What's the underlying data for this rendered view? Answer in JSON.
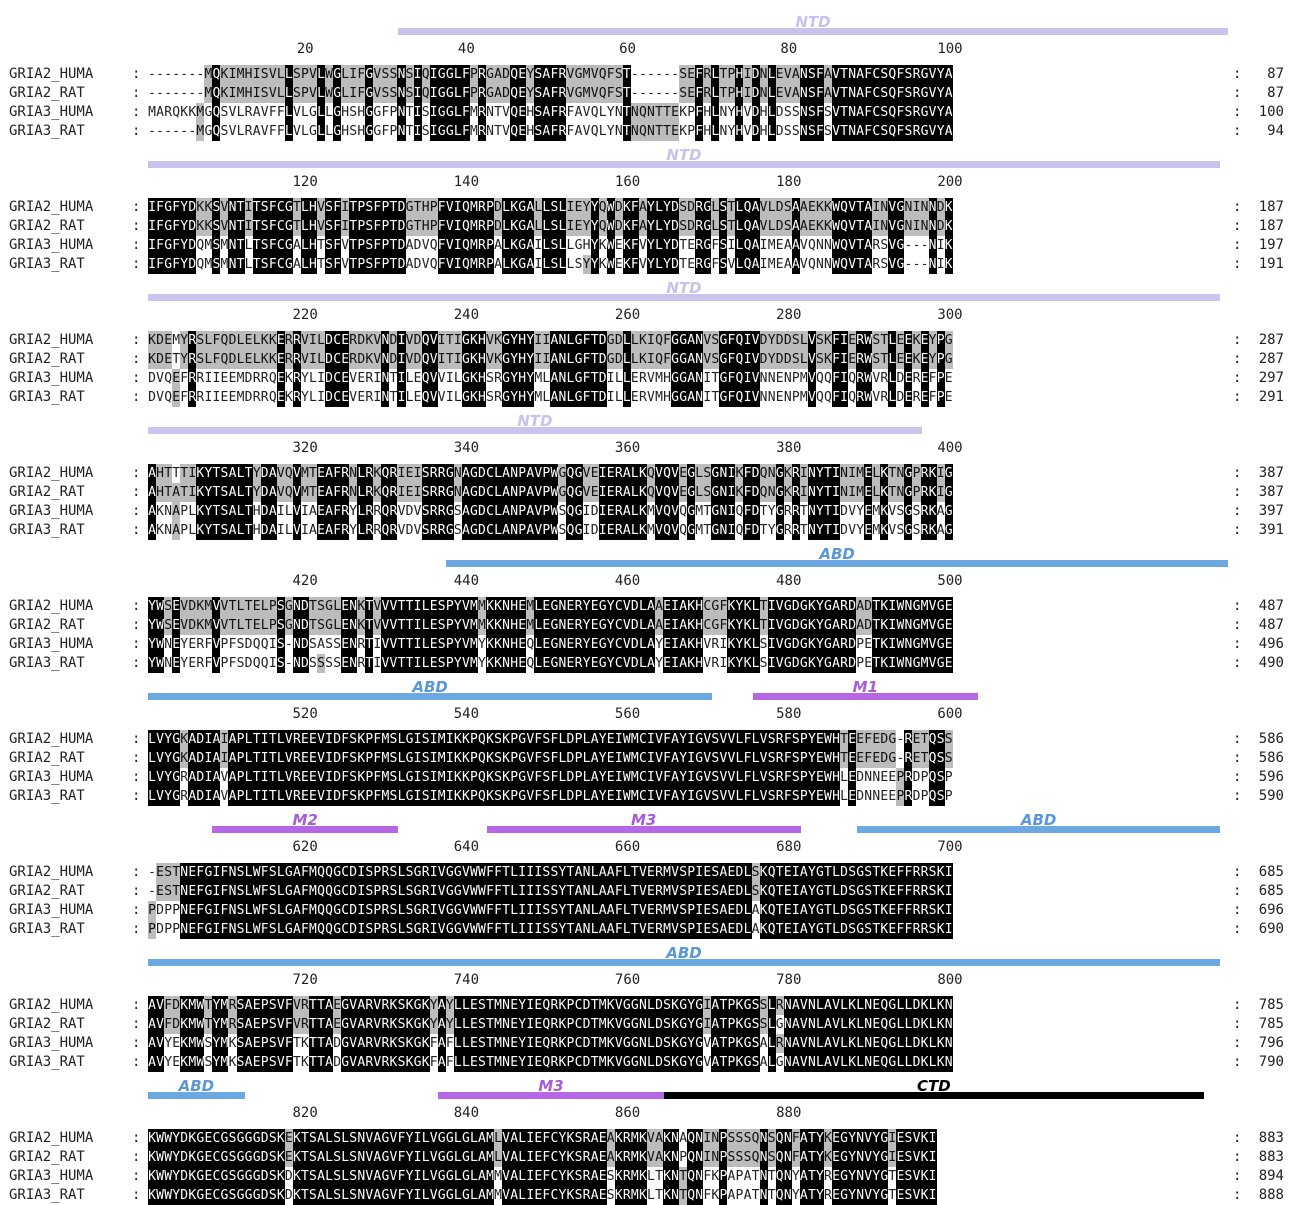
{
  "colors": {
    "NTD": "#c9c4ee",
    "ABD": "#6ca8e2",
    "M1": "#b567e6",
    "M2": "#b567e6",
    "M3": "#b567e6",
    "CTD": "#000000",
    "ntd_label": "#c7c3ec",
    "abd_label": "#5a97d8",
    "m_label": "#a85cd8",
    "ctd_label": "#000000",
    "identical_bg": "#000000",
    "similar_bg": "#bcbcbc"
  },
  "sequences": [
    "GRIA2_HUMA",
    "GRIA2_RAT",
    "GRIA3_HUMA",
    "GRIA3_RAT"
  ],
  "blocks": [
    {
      "ticks": [
        "20",
        "40",
        "60",
        "80",
        "100"
      ],
      "domains": [
        {
          "label": "NTD",
          "color_key": "NTD",
          "start_col": 31,
          "end_col": 133
        }
      ],
      "rows": [
        {
          "name": "GRIA2_HUMA",
          "seq": "-------MQKIMHISVLLSPVLWGLIFGVSSNSIQIGGLFPRGADQEYSAFRVGMVQFST------SEFRLTPHIDNLEVANSFAVTNAFCSQFSRGVYA",
          "end": "87"
        },
        {
          "name": "GRIA2_RAT",
          "seq": "-------MQKIMHISVLLSPVLWGLIFGVSSNSIQIGGLFPRGADQEYSAFRVGMVQFST------SEFRLTPHIDNLEVANSFAVTNAFCSQFSRGVYA",
          "end": "87"
        },
        {
          "name": "GRIA3_HUMA",
          "seq": "MARQKKMGQSVLRAVFFLVLGLLGHSHGGFPNTISIGGLFMRNTVQEHSAFRFAVQLYNTNQNTTEKPFHLNYHVDHLDSSNSFSVTNAFCSQFSRGVYA",
          "end": "100"
        },
        {
          "name": "GRIA3_RAT",
          "seq": "------MGQSVLRAVFFLVLGLLGHSHGGFPNTISIGGLFMRNTVQEHSAFRFAVQLYNTNQNTTEKPFHLNYHVDHLDSSNSFSVTNAFCSQFSRGVYA",
          "end": "94"
        }
      ]
    },
    {
      "ticks": [
        "120",
        "140",
        "160",
        "180",
        "200"
      ],
      "domains": [
        {
          "label": "NTD",
          "color_key": "NTD",
          "start_col": 0,
          "end_col": 132
        }
      ],
      "rows": [
        {
          "name": "GRIA2_HUMA",
          "seq": "IFGFYDKKSVNTITSFCGTLHVSFITPSFPTDGTHPFVIQMRPDLKGALLSLIEYYQWDKFAYLYDSDRGLSTLQAVLDSAAEKKWQVTAINVGNINNDK",
          "end": "187"
        },
        {
          "name": "GRIA2_RAT",
          "seq": "IFGFYDKKSVNTITSFCGTLHVSFITPSFPTDGTHPFVIQMRPDLKGALLSLIEYYQWDKFAYLYDSDRGLSTLQAVLDSAAEKKWQVTAINVGNINNDK",
          "end": "187"
        },
        {
          "name": "GRIA3_HUMA",
          "seq": "IFGFYDQMSMNTLTSFCGALHTSFVTPSFPTDADVQFVIQMRPALKGAILSLLGHYKWEKFVYLYDTERGFSILQAIMEAAVQNNWQVTARSVG---NIK",
          "end": "197"
        },
        {
          "name": "GRIA3_RAT",
          "seq": "IFGFYDQMSMNTLTSFCGALHTSFVTPSFPTDADVQFVIQMRPALKGAILSLLSYYKWEKFVYLYDTERGFSVLQAIMEAAVQNNWQVTARSVG---NIK",
          "end": "191"
        }
      ]
    },
    {
      "ticks": [
        "220",
        "240",
        "260",
        "280",
        "300"
      ],
      "domains": [
        {
          "label": "NTD",
          "color_key": "NTD",
          "start_col": 0,
          "end_col": 132
        }
      ],
      "rows": [
        {
          "name": "GRIA2_HUMA",
          "seq": "KDEMYRSLFQDLELKKERRVILDCERDKVNDIVDQVITIGKHVKGYHYIIANLGFTDGDLLKIQFGGANVSGFQIVDYDDSLVSKFIERWSTLEEKEYPG",
          "end": "287"
        },
        {
          "name": "GRIA2_RAT",
          "seq": "KDETYRSLFQDLELKKERRVILDCERDKVNDIVDQVITIGKHVKGYHYIIANLGFTDGDLLKIQFGGANVSGFQIVDYDDSLVSKFIERWSTLEEKEYPG",
          "end": "287"
        },
        {
          "name": "GRIA3_HUMA",
          "seq": "DVQEFRRIIEEMDRRQEKRYLIDCEVERINTILEQVVILGKHSRGYHYMLANLGFTDILLERVMHGGANITGFQIVNNENPMVQQFIQRWVRLDEREFPE",
          "end": "297"
        },
        {
          "name": "GRIA3_RAT",
          "seq": "DVQEFRRIIEEMDRRQEKRYLIDCEVERINTILEQVVILGKHSRGYHYMLANLGFTDILLERVMHGGANITGFQIVNNENPMVQQFIQRWVRLDEREFPE",
          "end": "291"
        }
      ]
    },
    {
      "ticks": [
        "320",
        "340",
        "360",
        "380",
        "400"
      ],
      "domains": [
        {
          "label": "NTD",
          "color_key": "NTD",
          "start_col": 0,
          "end_col": 95
        }
      ],
      "rows": [
        {
          "name": "GRIA2_HUMA",
          "seq": "AHTTTIKYTSALTYDAVQVMTEAFRNLRKQRIEISRRGNAGDCLANPAVPWGQGVEIERALKQVQVEGLSGNIKFDQNGKRINYTINIMELKTNGPRKIG",
          "end": "387"
        },
        {
          "name": "GRIA2_RAT",
          "seq": "AHTATIKYTSALTYDAVQVMTEAFRNLRKQRIEISRRGNAGDCLANPAVPWGQGVEIERALKQVQVEGLSGNIKFDQNGKRINYTINIMELKTNGPRKIG",
          "end": "387"
        },
        {
          "name": "GRIA3_HUMA",
          "seq": "AKNAPLKYTSALTHDAILVIAEAFRYLRRQRVDVSRRGSAGDCLANPAVPWSQGIDIERALKMVQVQGMTGNIQFDTYGRRTNYTIDVYEMKVSGSRKAG",
          "end": "397"
        },
        {
          "name": "GRIA3_RAT",
          "seq": "AKNAPLKYTSALTHDAILVIAEAFRYLRRQRVDVSRRGSAGDCLANPAVPWSQGIDIERALKMVQVQGMTGNIQFDTYGRRTNYTIDVYEMKVSGSRKAG",
          "end": "391"
        }
      ]
    },
    {
      "ticks": [
        "420",
        "440",
        "460",
        "480",
        "500"
      ],
      "domains": [
        {
          "label": "ABD",
          "color_key": "ABD",
          "start_col": 37,
          "end_col": 133
        }
      ],
      "rows": [
        {
          "name": "GRIA2_HUMA",
          "seq": "YWSEVDKMVVTLTELPSGNDTSGLENKTVVVTTILESPYVMMKKNHEMLEGNERYEGYCVDLAAEIAKHCGFKYKLTIVGDGKYGARDADTKIWNGMVGE",
          "end": "487"
        },
        {
          "name": "GRIA2_RAT",
          "seq": "YWSEVDKMVVTLTELPSGNDTSGLENKTVVVTTILESPYVMMKKNHEMLEGNERYEGYCVDLAAEIAKHCGFKYKLTIVGDGKYGARDADTKIWNGMVGE",
          "end": "487"
        },
        {
          "name": "GRIA3_HUMA",
          "seq": "YWNEYERFVPFSDQQIS-NDSASSENRTIVVTTILESPYVMYKKNHEQLEGNERYEGYCVDLAYEIAKHVRIKYKLSIVGDGKYGARDPETKIWNGMVGE",
          "end": "496"
        },
        {
          "name": "GRIA3_RAT",
          "seq": "YWNEYERFVPFSDQQIS-NDSSSSENRTIVVTTILESPYVMYKKNHEQLEGNERYEGYCVDLAYEIAKHVRIKYKLSIVGDGKYGARDPETKIWNGMVGE",
          "end": "490"
        }
      ]
    },
    {
      "ticks": [
        "520",
        "540",
        "560",
        "580",
        "600"
      ],
      "domains": [
        {
          "label": "ABD",
          "color_key": "ABD",
          "start_col": 0,
          "end_col": 69
        },
        {
          "label": "M1",
          "color_key": "M1",
          "start_col": 75,
          "end_col": 102
        }
      ],
      "rows": [
        {
          "name": "GRIA2_HUMA",
          "seq": "LVYGKADIAIAPLTITLVREEVIDFSKPFMSLGISIMIKKPQKSKPGVFSFLDPLAYEIWMCIVFAYIGVSVVLFLVSRFSPYEWHTEEFEDG-RETQSS",
          "end": "586"
        },
        {
          "name": "GRIA2_RAT",
          "seq": "LVYGKADIAIAPLTITLVREEVIDFSKPFMSLGISIMIKKPQKSKPGVFSFLDPLAYEIWMCIVFAYIGVSVVLFLVSRFSPYEWHTEEFEDG-RETQSS",
          "end": "586"
        },
        {
          "name": "GRIA3_HUMA",
          "seq": "LVYGRADIAVAPLTITLVREEVIDFSKPFMSLGISIMIKKPQKSKPGVFSFLDPLAYEIWMCIVFAYIGVSVVLFLVSRFSPYEWHLEDNNEEPRDPQSP",
          "end": "596"
        },
        {
          "name": "GRIA3_RAT",
          "seq": "LVYGRADIAVAPLTITLVREEVIDFSKPFMSLGISIMIKKPQKSKPGVFSFLDPLAYEIWMCIVFAYIGVSVVLFLVSRFSPYEWHLEDNNEEPRDPQSP",
          "end": "590"
        }
      ]
    },
    {
      "ticks": [
        "620",
        "640",
        "660",
        "680",
        "700"
      ],
      "domains": [
        {
          "label": "M2",
          "color_key": "M2",
          "start_col": 8,
          "end_col": 30
        },
        {
          "label": "M3",
          "color_key": "M3",
          "start_col": 42,
          "end_col": 80
        },
        {
          "label": "ABD",
          "color_key": "ABD",
          "start_col": 88,
          "end_col": 132
        }
      ],
      "rows": [
        {
          "name": "GRIA2_HUMA",
          "seq": "-ESTNEFGIFNSLWFSLGAFMQQGCDISPRSLSGRIVGGVWWFFTLIIISSYTANLAAFLTVERMVSPIESAEDLSKQTEIAYGTLDSGSTKEFFRRSKI",
          "end": "685"
        },
        {
          "name": "GRIA2_RAT",
          "seq": "-ESTNEFGIFNSLWFSLGAFMQQGCDISPRSLSGRIVGGVWWFFTLIIISSYTANLAAFLTVERMVSPIESAEDLSKQTEIAYGTLDSGSTKEFFRRSKI",
          "end": "685"
        },
        {
          "name": "GRIA3_HUMA",
          "seq": "PDPPNEFGIFNSLWFSLGAFMQQGCDISPRSLSGRIVGGVWWFFTLIIISSYTANLAAFLTVERMVSPIESAEDLAKQTEIAYGTLDSGSTKEFFRRSKI",
          "end": "696"
        },
        {
          "name": "GRIA3_RAT",
          "seq": "PDPPNEFGIFNSLWFSLGAFMQQGCDISPRSLSGRIVGGVWWFFTLIIISSYTANLAAFLTVERMVSPIESAEDLAKQTEIAYGTLDSGSTKEFFRRSKI",
          "end": "690"
        }
      ]
    },
    {
      "ticks": [
        "720",
        "740",
        "760",
        "780",
        "800"
      ],
      "domains": [
        {
          "label": "ABD",
          "color_key": "ABD",
          "start_col": 0,
          "end_col": 132
        }
      ],
      "rows": [
        {
          "name": "GRIA2_HUMA",
          "seq": "AVFDKMWTYMRSAEPSVFVRTTAEGVARVRKSKGKYAYLLESTMNEYIEQRKPCDTMKVGGNLDSKGYGIATPKGSSLRNAVNLAVLKLNEQGLLDKLKN",
          "end": "785"
        },
        {
          "name": "GRIA2_RAT",
          "seq": "AVFDKMWTYMRSAEPSVFVRTTAEGVARVRKSKGKYAYLLESTMNEYIEQRKPCDTMKVGGNLDSKGYGIATPKGSSLGNAVNLAVLKLNEQGLLDKLKN",
          "end": "785"
        },
        {
          "name": "GRIA3_HUMA",
          "seq": "AVYEKMWSYMKSAEPSVFTKTTADGVARVRKSKGKFAFLLESTMNEYIEQRKPCDTMKVGGNLDSKGYGVATPKGSALRNAVNLAVLKLNEQGLLDKLKN",
          "end": "796"
        },
        {
          "name": "GRIA3_RAT",
          "seq": "AVYEKMWSYMKSAEPSVFTKTTADGVARVRKSKGKFAFLLESTMNEYIEQRKPCDTMKVGGNLDSKGYGVATPKGSALGNAVNLAVLKLNEQGLLDKLKN",
          "end": "790"
        }
      ]
    },
    {
      "ticks": [
        "820",
        "840",
        "860",
        "880"
      ],
      "domains": [
        {
          "label": "ABD",
          "color_key": "ABD",
          "start_col": 0,
          "end_col": 11
        },
        {
          "label": "M3",
          "color_key": "M3",
          "start_col": 36,
          "end_col": 63
        },
        {
          "label": "CTD",
          "color_key": "CTD",
          "start_col": 64,
          "end_col": 130
        }
      ],
      "rows": [
        {
          "name": "GRIA2_HUMA",
          "seq": "KWWYDKGECGSGGGDSKEKTSALSLSNVAGVFYILVGGLGLAMLVALIEFCYKSRAEAKRMKVAKNAQNINPSSSQNSQNFATYKEGYNVYGIESVKI",
          "end": "883"
        },
        {
          "name": "GRIA2_RAT",
          "seq": "KWWYDKGECGSGGGDSKEKTSALSLSNVAGVFYILVGGLGLAMLVALIEFCYKSRAEAKRMKVAKNPQNINPSSSQNSQNFATYKEGYNVYGIESVKI",
          "end": "883"
        },
        {
          "name": "GRIA3_HUMA",
          "seq": "KWWYDKGECGSGGGDSKDKTSALSLSNVAGVFYILVGGLGLAMMVALIEFCYKSRAESKRMKLTKNTQNFKPAPATNTQNYATYREGYNVYGTESVKI",
          "end": "894"
        },
        {
          "name": "GRIA3_RAT",
          "seq": "KWWYDKGECGSGGGDSKDKTSALSLSNVAGVFYILVGGLGLAMMVALIEFCYKSRAESKRMKLTKNTQNFKPAPATNTQNYATYREGYNVYGTESVKI",
          "end": "888"
        }
      ]
    }
  ]
}
